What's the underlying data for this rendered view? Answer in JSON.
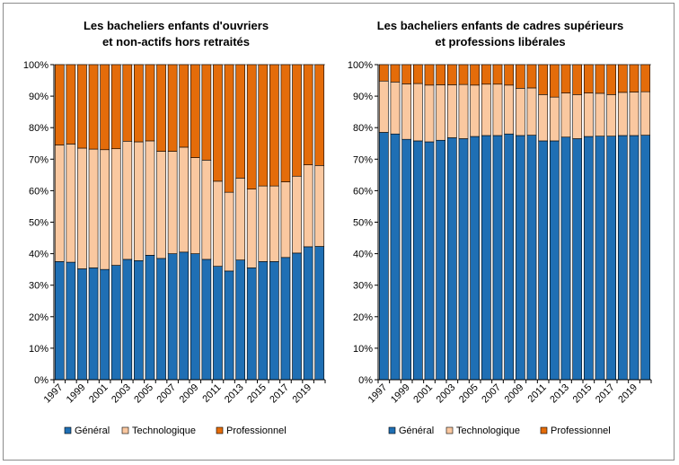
{
  "colors": {
    "general": "#1f6fb4",
    "technologique": "#fac8a0",
    "professionnel": "#e46c0a",
    "bar_border": "#000000",
    "axis": "#000000"
  },
  "chart_data": [
    {
      "type": "bar",
      "stacked": true,
      "title_lines": [
        "Les bacheliers enfants d'ouvriers",
        "et non-actifs hors retraités"
      ],
      "categories": [
        "1997",
        "1998",
        "1999",
        "2000",
        "2001",
        "2002",
        "2003",
        "2004",
        "2005",
        "2006",
        "2007",
        "2008",
        "2009",
        "2010",
        "2011",
        "2012",
        "2013",
        "2014",
        "2015",
        "2016",
        "2017",
        "2018",
        "2019",
        "2020"
      ],
      "x_tick_labels": [
        "1997",
        "1999",
        "2001",
        "2003",
        "2005",
        "2007",
        "2009",
        "2011",
        "2013",
        "2015",
        "2017",
        "2019"
      ],
      "y_tick_labels": [
        "0%",
        "10%",
        "20%",
        "30%",
        "40%",
        "50%",
        "60%",
        "70%",
        "80%",
        "90%",
        "100%"
      ],
      "ylim": [
        0,
        100
      ],
      "series": [
        {
          "name": "Général",
          "values": [
            37.5,
            37.3,
            35.2,
            35.5,
            35.0,
            36.3,
            38.2,
            37.8,
            39.5,
            38.5,
            40.0,
            40.5,
            40.0,
            38.2,
            36.0,
            34.5,
            38.0,
            35.5,
            37.5,
            37.5,
            38.8,
            40.2,
            42.2,
            42.3
          ]
        },
        {
          "name": "Technologique",
          "values": [
            37.0,
            37.5,
            38.3,
            37.7,
            38.0,
            37.0,
            37.5,
            37.7,
            36.3,
            34.0,
            32.5,
            33.3,
            30.5,
            31.5,
            27.0,
            25.0,
            26.0,
            25.0,
            24.0,
            24.0,
            24.0,
            24.4,
            26.0,
            25.7
          ]
        },
        {
          "name": "Professionnel",
          "values": [
            25.5,
            25.2,
            26.5,
            26.8,
            27.0,
            26.7,
            24.3,
            24.5,
            24.2,
            27.5,
            27.5,
            26.2,
            29.5,
            30.3,
            37.0,
            40.5,
            36.0,
            39.5,
            38.5,
            38.5,
            37.2,
            35.4,
            31.8,
            32.0
          ]
        }
      ],
      "legend_position": "bottom"
    },
    {
      "type": "bar",
      "stacked": true,
      "title_lines": [
        "Les bacheliers enfants de cadres supérieurs",
        "et professions libérales"
      ],
      "categories": [
        "1997",
        "1998",
        "1999",
        "2000",
        "2001",
        "2002",
        "2003",
        "2004",
        "2005",
        "2006",
        "2007",
        "2008",
        "2009",
        "2010",
        "2011",
        "2012",
        "2013",
        "2014",
        "2015",
        "2016",
        "2017",
        "2018",
        "2019",
        "2020"
      ],
      "x_tick_labels": [
        "1997",
        "1999",
        "2001",
        "2003",
        "2005",
        "2007",
        "2009",
        "2011",
        "2013",
        "2015",
        "2017",
        "2019"
      ],
      "y_tick_labels": [
        "0%",
        "10%",
        "20%",
        "30%",
        "40%",
        "50%",
        "60%",
        "70%",
        "80%",
        "90%",
        "100%"
      ],
      "ylim": [
        0,
        100
      ],
      "series": [
        {
          "name": "Général",
          "values": [
            78.5,
            78.0,
            76.3,
            75.8,
            75.5,
            76.0,
            76.8,
            76.5,
            77.2,
            77.5,
            77.5,
            78.0,
            77.5,
            77.6,
            75.8,
            75.8,
            77.0,
            76.5,
            77.2,
            77.3,
            77.3,
            77.5,
            77.5,
            77.6
          ]
        },
        {
          "name": "Technologique",
          "values": [
            16.3,
            16.5,
            17.6,
            18.2,
            18.0,
            17.6,
            16.8,
            17.2,
            16.3,
            16.3,
            16.3,
            15.5,
            15.0,
            15.0,
            14.7,
            13.9,
            14.0,
            14.0,
            13.8,
            13.6,
            13.2,
            13.7,
            13.8,
            13.8
          ]
        },
        {
          "name": "Professionnel",
          "values": [
            5.2,
            5.5,
            6.1,
            6.0,
            6.5,
            6.4,
            6.4,
            6.3,
            6.5,
            6.2,
            6.2,
            6.5,
            7.5,
            7.4,
            9.5,
            10.3,
            9.0,
            9.5,
            9.0,
            9.1,
            9.5,
            8.8,
            8.7,
            8.6
          ]
        }
      ],
      "legend_position": "bottom"
    }
  ]
}
